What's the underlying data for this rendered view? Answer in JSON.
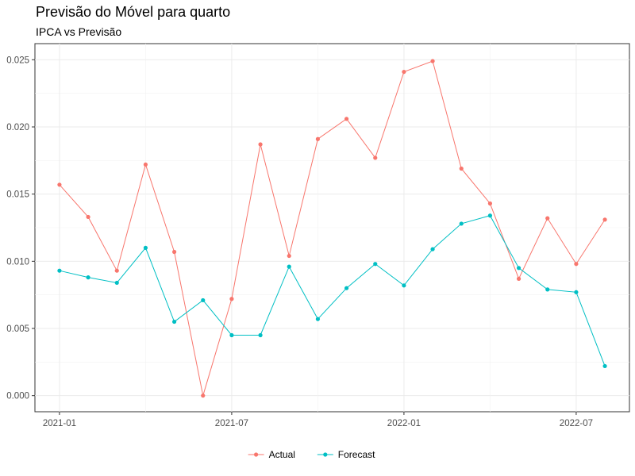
{
  "chart_data": {
    "type": "line",
    "title": "Previsão do Móvel para quarto",
    "subtitle": "IPCA vs Previsão",
    "xlabel": "",
    "ylabel": "",
    "x": [
      "2021-01",
      "2021-02",
      "2021-03",
      "2021-04",
      "2021-05",
      "2021-06",
      "2021-07",
      "2021-08",
      "2021-09",
      "2021-10",
      "2021-11",
      "2021-12",
      "2022-01",
      "2022-02",
      "2022-03",
      "2022-04",
      "2022-05",
      "2022-06",
      "2022-07",
      "2022-08"
    ],
    "x_ticks": [
      "2021-01",
      "2021-07",
      "2022-01",
      "2022-07"
    ],
    "y_ticks": [
      "0.000",
      "0.005",
      "0.010",
      "0.015",
      "0.020",
      "0.025"
    ],
    "ylim": [
      -0.0012,
      0.0262
    ],
    "grid": true,
    "legend_position": "bottom",
    "series": [
      {
        "name": "Actual",
        "color": "#F8766D",
        "values": [
          0.0157,
          0.0133,
          0.0093,
          0.0172,
          0.0107,
          0.0,
          0.0072,
          0.0187,
          0.0104,
          0.0191,
          0.0206,
          0.0177,
          0.0241,
          0.0249,
          0.0169,
          0.0143,
          0.0087,
          0.0132,
          0.0098,
          0.0131
        ]
      },
      {
        "name": "Forecast",
        "color": "#00BFC4",
        "values": [
          0.0093,
          0.0088,
          0.0084,
          0.011,
          0.0055,
          0.0071,
          0.0045,
          0.0045,
          0.0096,
          0.0057,
          0.008,
          0.0098,
          0.0082,
          0.0109,
          0.0128,
          0.0134,
          0.0095,
          0.0079,
          0.0077,
          0.0022
        ]
      }
    ]
  }
}
